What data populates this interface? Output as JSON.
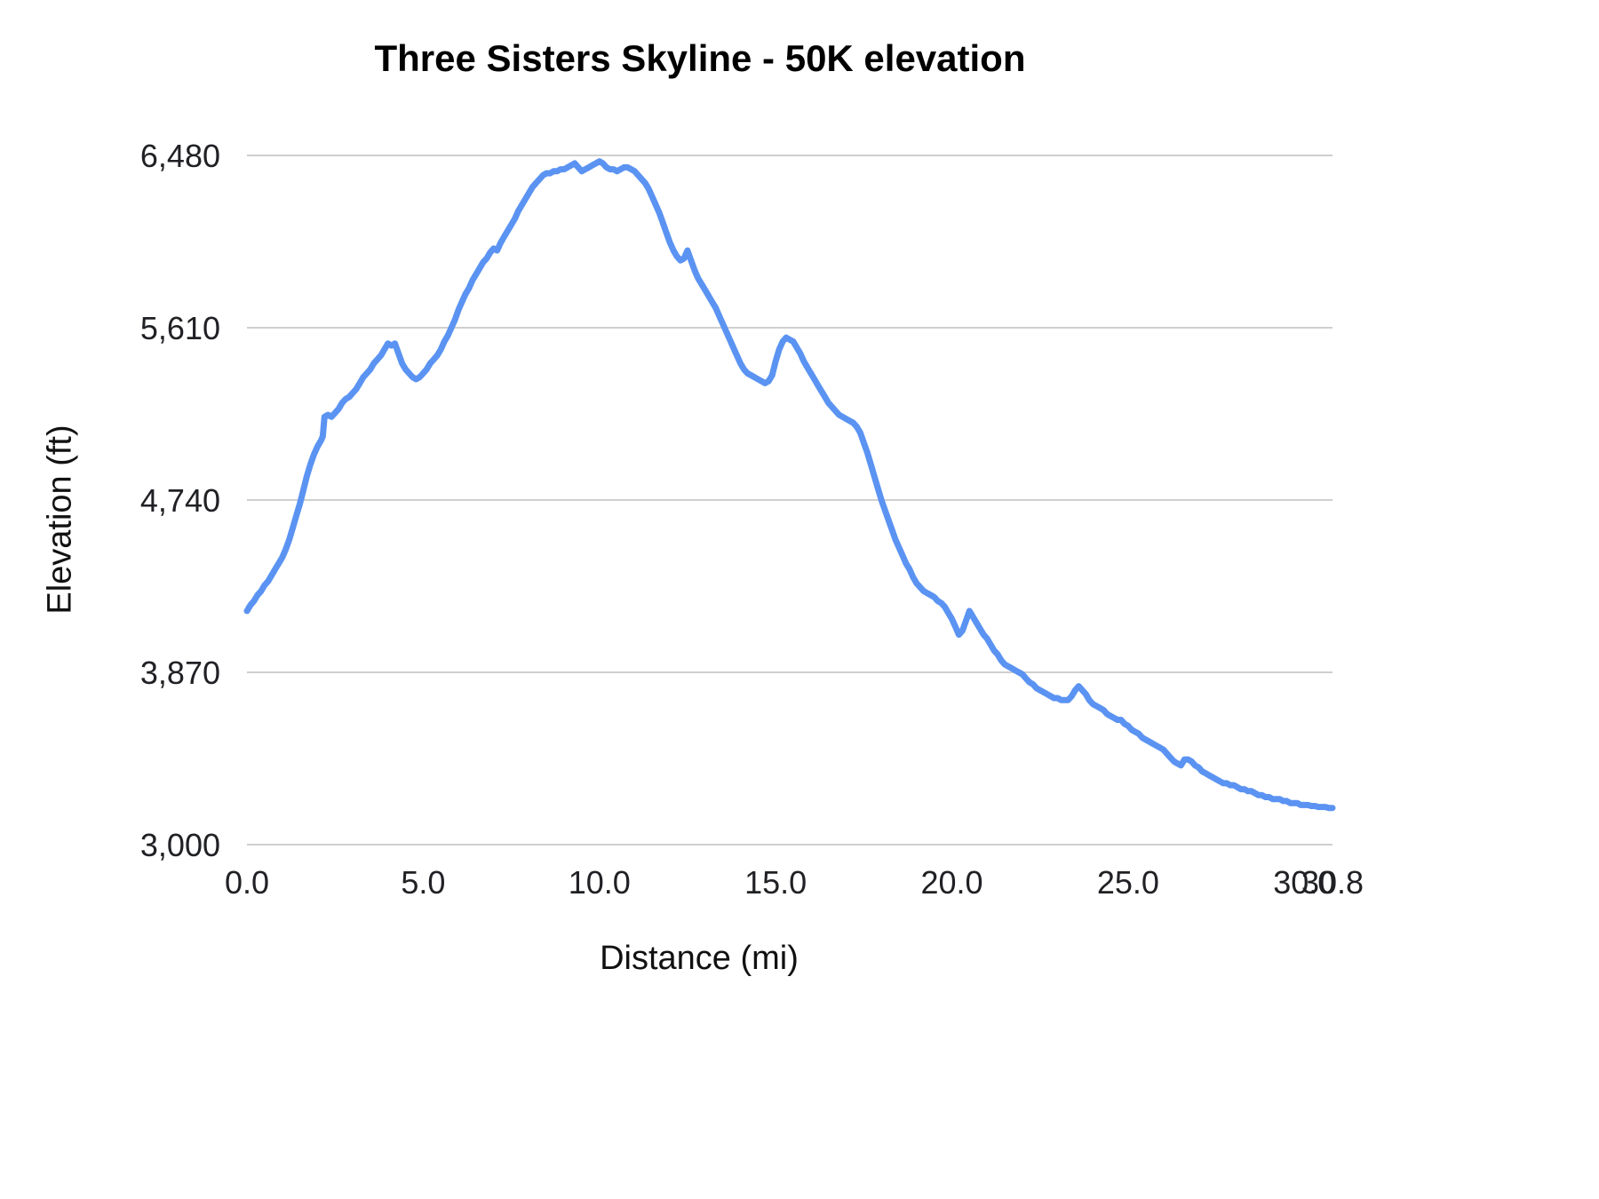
{
  "chart_data": {
    "type": "line",
    "title": "Three Sisters Skyline - 50K elevation",
    "xlabel": "Distance (mi)",
    "ylabel": "Elevation (ft)",
    "xlim": [
      0,
      30.8
    ],
    "ylim": [
      3000,
      6480
    ],
    "grid": "horizontal",
    "legend": "none",
    "line_color": "#5b93f2",
    "grid_color": "#cfcfcf",
    "x_ticks": {
      "values": [
        0,
        5,
        10,
        15,
        20,
        25,
        30,
        30.8
      ],
      "labels": [
        "0.0",
        "5.0",
        "10.0",
        "15.0",
        "20.0",
        "25.0",
        "30.0",
        "30.8"
      ]
    },
    "y_ticks": {
      "values": [
        3000,
        3870,
        4740,
        5610,
        6480
      ],
      "labels": [
        "3,000",
        "3,870",
        "4,740",
        "5,610",
        "6,480"
      ]
    },
    "series": [
      {
        "name": "Elevation",
        "points": [
          [
            0.0,
            4180
          ],
          [
            0.1,
            4210
          ],
          [
            0.2,
            4230
          ],
          [
            0.3,
            4260
          ],
          [
            0.4,
            4280
          ],
          [
            0.5,
            4310
          ],
          [
            0.6,
            4330
          ],
          [
            0.7,
            4360
          ],
          [
            0.8,
            4390
          ],
          [
            0.9,
            4420
          ],
          [
            1.0,
            4450
          ],
          [
            1.1,
            4490
          ],
          [
            1.2,
            4540
          ],
          [
            1.3,
            4600
          ],
          [
            1.4,
            4660
          ],
          [
            1.5,
            4720
          ],
          [
            1.6,
            4790
          ],
          [
            1.7,
            4860
          ],
          [
            1.8,
            4920
          ],
          [
            1.9,
            4970
          ],
          [
            2.0,
            5010
          ],
          [
            2.1,
            5040
          ],
          [
            2.15,
            5060
          ],
          [
            2.2,
            5160
          ],
          [
            2.3,
            5170
          ],
          [
            2.4,
            5160
          ],
          [
            2.5,
            5180
          ],
          [
            2.6,
            5200
          ],
          [
            2.7,
            5230
          ],
          [
            2.8,
            5250
          ],
          [
            2.9,
            5260
          ],
          [
            3.0,
            5280
          ],
          [
            3.1,
            5300
          ],
          [
            3.2,
            5330
          ],
          [
            3.3,
            5360
          ],
          [
            3.4,
            5380
          ],
          [
            3.5,
            5400
          ],
          [
            3.6,
            5430
          ],
          [
            3.7,
            5450
          ],
          [
            3.8,
            5470
          ],
          [
            3.9,
            5500
          ],
          [
            4.0,
            5530
          ],
          [
            4.1,
            5520
          ],
          [
            4.2,
            5530
          ],
          [
            4.3,
            5480
          ],
          [
            4.4,
            5430
          ],
          [
            4.5,
            5400
          ],
          [
            4.6,
            5380
          ],
          [
            4.7,
            5360
          ],
          [
            4.8,
            5350
          ],
          [
            4.9,
            5360
          ],
          [
            5.0,
            5380
          ],
          [
            5.1,
            5400
          ],
          [
            5.2,
            5430
          ],
          [
            5.3,
            5450
          ],
          [
            5.4,
            5470
          ],
          [
            5.5,
            5500
          ],
          [
            5.6,
            5540
          ],
          [
            5.7,
            5570
          ],
          [
            5.8,
            5610
          ],
          [
            5.9,
            5650
          ],
          [
            6.0,
            5700
          ],
          [
            6.1,
            5740
          ],
          [
            6.2,
            5780
          ],
          [
            6.3,
            5810
          ],
          [
            6.4,
            5850
          ],
          [
            6.5,
            5880
          ],
          [
            6.6,
            5910
          ],
          [
            6.7,
            5940
          ],
          [
            6.8,
            5960
          ],
          [
            6.9,
            5990
          ],
          [
            7.0,
            6010
          ],
          [
            7.1,
            6000
          ],
          [
            7.2,
            6040
          ],
          [
            7.3,
            6070
          ],
          [
            7.4,
            6100
          ],
          [
            7.5,
            6130
          ],
          [
            7.6,
            6160
          ],
          [
            7.7,
            6200
          ],
          [
            7.8,
            6230
          ],
          [
            7.9,
            6260
          ],
          [
            8.0,
            6290
          ],
          [
            8.1,
            6320
          ],
          [
            8.2,
            6340
          ],
          [
            8.3,
            6360
          ],
          [
            8.4,
            6380
          ],
          [
            8.5,
            6390
          ],
          [
            8.6,
            6390
          ],
          [
            8.7,
            6400
          ],
          [
            8.8,
            6400
          ],
          [
            8.9,
            6410
          ],
          [
            9.0,
            6410
          ],
          [
            9.1,
            6420
          ],
          [
            9.2,
            6430
          ],
          [
            9.3,
            6440
          ],
          [
            9.4,
            6420
          ],
          [
            9.5,
            6400
          ],
          [
            9.6,
            6410
          ],
          [
            9.7,
            6420
          ],
          [
            9.8,
            6430
          ],
          [
            9.9,
            6440
          ],
          [
            10.0,
            6450
          ],
          [
            10.1,
            6440
          ],
          [
            10.2,
            6420
          ],
          [
            10.3,
            6410
          ],
          [
            10.4,
            6410
          ],
          [
            10.5,
            6400
          ],
          [
            10.6,
            6410
          ],
          [
            10.7,
            6420
          ],
          [
            10.8,
            6420
          ],
          [
            10.9,
            6410
          ],
          [
            11.0,
            6400
          ],
          [
            11.1,
            6380
          ],
          [
            11.2,
            6360
          ],
          [
            11.3,
            6340
          ],
          [
            11.4,
            6310
          ],
          [
            11.5,
            6270
          ],
          [
            11.6,
            6230
          ],
          [
            11.7,
            6190
          ],
          [
            11.8,
            6140
          ],
          [
            11.9,
            6090
          ],
          [
            12.0,
            6040
          ],
          [
            12.1,
            6000
          ],
          [
            12.2,
            5970
          ],
          [
            12.3,
            5950
          ],
          [
            12.4,
            5960
          ],
          [
            12.5,
            6000
          ],
          [
            12.6,
            5950
          ],
          [
            12.7,
            5900
          ],
          [
            12.8,
            5860
          ],
          [
            12.9,
            5830
          ],
          [
            13.0,
            5800
          ],
          [
            13.1,
            5770
          ],
          [
            13.2,
            5740
          ],
          [
            13.3,
            5710
          ],
          [
            13.4,
            5670
          ],
          [
            13.5,
            5630
          ],
          [
            13.6,
            5590
          ],
          [
            13.7,
            5550
          ],
          [
            13.8,
            5510
          ],
          [
            13.9,
            5470
          ],
          [
            14.0,
            5430
          ],
          [
            14.1,
            5400
          ],
          [
            14.2,
            5380
          ],
          [
            14.3,
            5370
          ],
          [
            14.4,
            5360
          ],
          [
            14.5,
            5350
          ],
          [
            14.6,
            5340
          ],
          [
            14.7,
            5330
          ],
          [
            14.8,
            5340
          ],
          [
            14.9,
            5370
          ],
          [
            15.0,
            5440
          ],
          [
            15.1,
            5500
          ],
          [
            15.2,
            5540
          ],
          [
            15.3,
            5560
          ],
          [
            15.4,
            5550
          ],
          [
            15.5,
            5540
          ],
          [
            15.6,
            5510
          ],
          [
            15.7,
            5480
          ],
          [
            15.8,
            5440
          ],
          [
            15.9,
            5410
          ],
          [
            16.0,
            5380
          ],
          [
            16.1,
            5350
          ],
          [
            16.2,
            5320
          ],
          [
            16.3,
            5290
          ],
          [
            16.4,
            5260
          ],
          [
            16.5,
            5230
          ],
          [
            16.6,
            5210
          ],
          [
            16.7,
            5190
          ],
          [
            16.8,
            5170
          ],
          [
            16.9,
            5160
          ],
          [
            17.0,
            5150
          ],
          [
            17.1,
            5140
          ],
          [
            17.2,
            5130
          ],
          [
            17.3,
            5110
          ],
          [
            17.4,
            5080
          ],
          [
            17.5,
            5030
          ],
          [
            17.6,
            4980
          ],
          [
            17.7,
            4920
          ],
          [
            17.8,
            4860
          ],
          [
            17.9,
            4800
          ],
          [
            18.0,
            4740
          ],
          [
            18.1,
            4690
          ],
          [
            18.2,
            4640
          ],
          [
            18.3,
            4590
          ],
          [
            18.4,
            4540
          ],
          [
            18.5,
            4500
          ],
          [
            18.6,
            4460
          ],
          [
            18.7,
            4420
          ],
          [
            18.8,
            4390
          ],
          [
            18.9,
            4350
          ],
          [
            19.0,
            4320
          ],
          [
            19.1,
            4300
          ],
          [
            19.2,
            4280
          ],
          [
            19.3,
            4270
          ],
          [
            19.4,
            4260
          ],
          [
            19.5,
            4250
          ],
          [
            19.6,
            4230
          ],
          [
            19.7,
            4220
          ],
          [
            19.8,
            4200
          ],
          [
            19.9,
            4170
          ],
          [
            20.0,
            4140
          ],
          [
            20.1,
            4100
          ],
          [
            20.2,
            4060
          ],
          [
            20.3,
            4080
          ],
          [
            20.4,
            4130
          ],
          [
            20.5,
            4180
          ],
          [
            20.6,
            4150
          ],
          [
            20.7,
            4120
          ],
          [
            20.8,
            4090
          ],
          [
            20.9,
            4060
          ],
          [
            21.0,
            4040
          ],
          [
            21.1,
            4010
          ],
          [
            21.2,
            3980
          ],
          [
            21.3,
            3960
          ],
          [
            21.4,
            3930
          ],
          [
            21.5,
            3910
          ],
          [
            21.6,
            3900
          ],
          [
            21.7,
            3890
          ],
          [
            21.8,
            3880
          ],
          [
            21.9,
            3870
          ],
          [
            22.0,
            3860
          ],
          [
            22.1,
            3840
          ],
          [
            22.2,
            3820
          ],
          [
            22.3,
            3810
          ],
          [
            22.4,
            3790
          ],
          [
            22.5,
            3780
          ],
          [
            22.6,
            3770
          ],
          [
            22.7,
            3760
          ],
          [
            22.8,
            3750
          ],
          [
            22.9,
            3740
          ],
          [
            23.0,
            3740
          ],
          [
            23.1,
            3730
          ],
          [
            23.2,
            3730
          ],
          [
            23.3,
            3730
          ],
          [
            23.4,
            3750
          ],
          [
            23.5,
            3780
          ],
          [
            23.6,
            3800
          ],
          [
            23.7,
            3780
          ],
          [
            23.8,
            3760
          ],
          [
            23.9,
            3730
          ],
          [
            24.0,
            3710
          ],
          [
            24.1,
            3700
          ],
          [
            24.2,
            3690
          ],
          [
            24.3,
            3680
          ],
          [
            24.4,
            3660
          ],
          [
            24.5,
            3650
          ],
          [
            24.6,
            3640
          ],
          [
            24.7,
            3630
          ],
          [
            24.8,
            3630
          ],
          [
            24.9,
            3610
          ],
          [
            25.0,
            3600
          ],
          [
            25.1,
            3580
          ],
          [
            25.2,
            3570
          ],
          [
            25.3,
            3560
          ],
          [
            25.4,
            3540
          ],
          [
            25.5,
            3530
          ],
          [
            25.6,
            3520
          ],
          [
            25.7,
            3510
          ],
          [
            25.8,
            3500
          ],
          [
            25.9,
            3490
          ],
          [
            26.0,
            3480
          ],
          [
            26.1,
            3460
          ],
          [
            26.2,
            3440
          ],
          [
            26.3,
            3420
          ],
          [
            26.4,
            3410
          ],
          [
            26.5,
            3400
          ],
          [
            26.6,
            3430
          ],
          [
            26.7,
            3430
          ],
          [
            26.8,
            3420
          ],
          [
            26.9,
            3400
          ],
          [
            27.0,
            3390
          ],
          [
            27.1,
            3370
          ],
          [
            27.2,
            3360
          ],
          [
            27.3,
            3350
          ],
          [
            27.4,
            3340
          ],
          [
            27.5,
            3330
          ],
          [
            27.6,
            3320
          ],
          [
            27.7,
            3310
          ],
          [
            27.8,
            3310
          ],
          [
            27.9,
            3300
          ],
          [
            28.0,
            3300
          ],
          [
            28.1,
            3290
          ],
          [
            28.2,
            3280
          ],
          [
            28.3,
            3280
          ],
          [
            28.4,
            3270
          ],
          [
            28.5,
            3270
          ],
          [
            28.6,
            3260
          ],
          [
            28.7,
            3250
          ],
          [
            28.8,
            3250
          ],
          [
            28.9,
            3240
          ],
          [
            29.0,
            3240
          ],
          [
            29.1,
            3230
          ],
          [
            29.2,
            3230
          ],
          [
            29.3,
            3230
          ],
          [
            29.4,
            3220
          ],
          [
            29.5,
            3220
          ],
          [
            29.6,
            3210
          ],
          [
            29.7,
            3210
          ],
          [
            29.8,
            3210
          ],
          [
            29.9,
            3200
          ],
          [
            30.0,
            3200
          ],
          [
            30.1,
            3200
          ],
          [
            30.2,
            3195
          ],
          [
            30.3,
            3195
          ],
          [
            30.4,
            3190
          ],
          [
            30.5,
            3190
          ],
          [
            30.6,
            3190
          ],
          [
            30.7,
            3185
          ],
          [
            30.8,
            3185
          ]
        ]
      }
    ]
  }
}
